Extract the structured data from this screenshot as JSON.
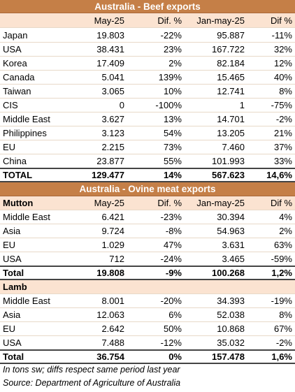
{
  "beef": {
    "title": "Australia - Beef exports",
    "headers": [
      "",
      "May-25",
      "Dif. %",
      "Jan-may-25",
      "Dif %"
    ],
    "rows": [
      [
        "Japan",
        "19.803",
        "-22%",
        "95.887",
        "-11%"
      ],
      [
        "USA",
        "38.431",
        "23%",
        "167.722",
        "32%"
      ],
      [
        "Korea",
        "17.409",
        "2%",
        "82.184",
        "12%"
      ],
      [
        "Canada",
        "5.041",
        "139%",
        "15.465",
        "40%"
      ],
      [
        "Taiwan",
        "3.065",
        "10%",
        "12.741",
        "8%"
      ],
      [
        "CIS",
        "0",
        "-100%",
        "1",
        "-75%"
      ],
      [
        "Middle East",
        "3.627",
        "13%",
        "14.701",
        "-2%"
      ],
      [
        "Philippines",
        "3.123",
        "54%",
        "13.205",
        "21%"
      ],
      [
        "EU",
        "2.215",
        "73%",
        "7.460",
        "37%"
      ],
      [
        "China",
        "23.877",
        "55%",
        "101.993",
        "33%"
      ]
    ],
    "total": [
      "TOTAL",
      "129.477",
      "14%",
      "567.623",
      "14,6%"
    ]
  },
  "ovine": {
    "title": "Australia - Ovine meat exports",
    "mutton": {
      "headers": [
        "Mutton",
        "May-25",
        "Dif. %",
        "Jan-may-25",
        "Dif %"
      ],
      "rows": [
        [
          "Middle East",
          "6.421",
          "-23%",
          "30.394",
          "4%"
        ],
        [
          "Asia",
          "9.724",
          "-8%",
          "54.963",
          "2%"
        ],
        [
          "EU",
          "1.029",
          "47%",
          "3.631",
          "63%"
        ],
        [
          "USA",
          "712",
          "-24%",
          "3.465",
          "-59%"
        ]
      ],
      "total": [
        "Total",
        "19.808",
        "-9%",
        "100.268",
        "1,2%"
      ]
    },
    "lamb": {
      "label": "Lamb",
      "rows": [
        [
          "Middle East",
          "8.001",
          "-20%",
          "34.393",
          "-19%"
        ],
        [
          "Asia",
          "12.063",
          "6%",
          "52.038",
          "8%"
        ],
        [
          "EU",
          "2.642",
          "50%",
          "10.868",
          "67%"
        ],
        [
          "USA",
          "7.488",
          "-12%",
          "35.032",
          "-2%"
        ]
      ],
      "total": [
        "Total",
        "36.754",
        "0%",
        "157.478",
        "1,6%"
      ]
    }
  },
  "notes": {
    "units": "In tons sw; diffs respect same period last year",
    "source": "Source: Department of Agriculture of Australia"
  }
}
